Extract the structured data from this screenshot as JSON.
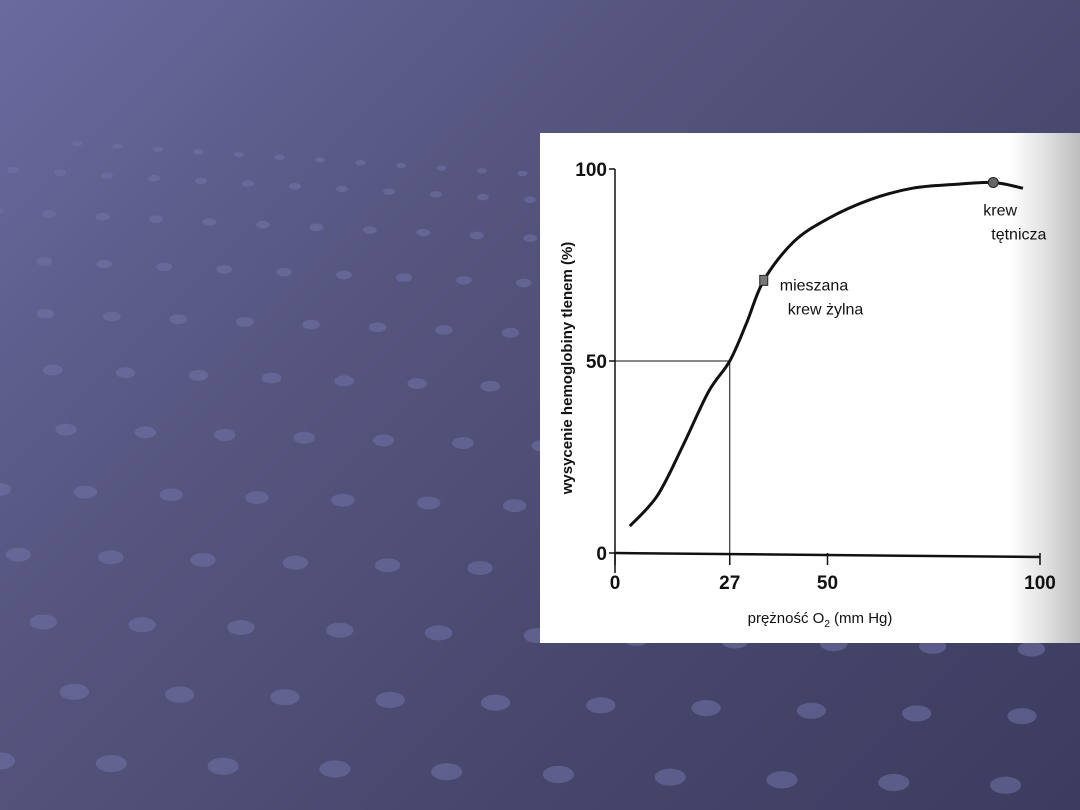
{
  "slide": {
    "background_color": "#55557f",
    "accent": "#6a6aa0"
  },
  "chart_data": {
    "type": "line",
    "title": "",
    "xlabel": "prężność O",
    "xlabel_sub": "2",
    "xlabel_unit": " (mm Hg)",
    "ylabel": "wysycenie hemoglobiny tlenem (%)",
    "xlim": [
      0,
      100
    ],
    "ylim": [
      0,
      100
    ],
    "xticks": [
      0,
      27,
      50,
      100
    ],
    "xtick_labels": [
      "0",
      "27",
      "50",
      "100"
    ],
    "yticks": [
      0,
      50,
      100
    ],
    "ytick_labels": [
      "0",
      "50",
      "100"
    ],
    "grid": false,
    "series": [
      {
        "x": [
          3.5,
          10,
          16,
          22,
          27,
          31,
          35,
          42,
          50,
          60,
          70,
          80,
          89,
          96
        ],
        "y": [
          7,
          15,
          28,
          42,
          50,
          60,
          71,
          81,
          87,
          92,
          95,
          96,
          96.5,
          95
        ]
      }
    ],
    "reference_lines": [
      {
        "x": 27,
        "y": 50
      }
    ],
    "annotations": [
      {
        "x": 35,
        "y": 71,
        "marker": "square",
        "lines": [
          "mieszana",
          "krew żylna"
        ]
      },
      {
        "x": 89,
        "y": 96.5,
        "marker": "circle",
        "lines": [
          "krew",
          "tętnicza"
        ]
      }
    ]
  }
}
